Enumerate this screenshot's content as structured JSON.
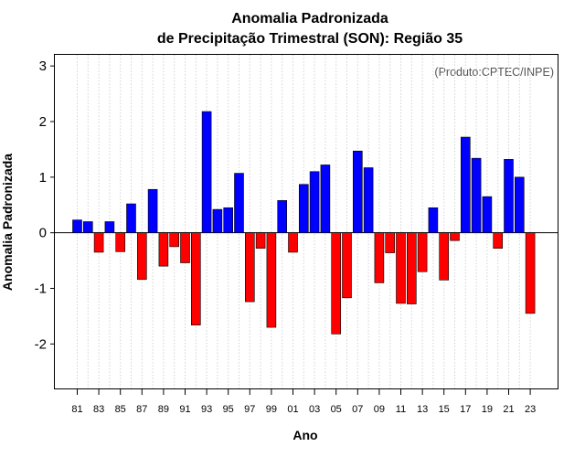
{
  "chart_data": {
    "type": "bar",
    "title": [
      "Anomalia Padronizada",
      "de Precipitação Trimestral (SON): Região 35"
    ],
    "xlabel": "Ano",
    "ylabel": "Anomalia Padronizada",
    "credit": "(Produto:CPTEC/INPE)",
    "ylim": [
      -2.8,
      3.2
    ],
    "yticks": [
      -2,
      -1,
      0,
      1,
      2,
      3
    ],
    "xtick_labels": [
      "81",
      "83",
      "85",
      "87",
      "89",
      "91",
      "93",
      "95",
      "97",
      "99",
      "01",
      "03",
      "05",
      "07",
      "09",
      "11",
      "13",
      "15",
      "17",
      "19",
      "21",
      "23"
    ],
    "categories": [
      "1981",
      "1982",
      "1983",
      "1984",
      "1985",
      "1986",
      "1987",
      "1988",
      "1989",
      "1990",
      "1991",
      "1992",
      "1993",
      "1994",
      "1995",
      "1996",
      "1997",
      "1998",
      "1999",
      "2000",
      "2001",
      "2002",
      "2003",
      "2004",
      "2005",
      "2006",
      "2007",
      "2008",
      "2009",
      "2010",
      "2011",
      "2012",
      "2013",
      "2014",
      "2015",
      "2016",
      "2017",
      "2018",
      "2019",
      "2020",
      "2021",
      "2022",
      "2023"
    ],
    "values": [
      0.23,
      0.2,
      -0.35,
      0.2,
      -0.34,
      0.52,
      -0.84,
      0.78,
      -0.6,
      -0.25,
      -0.54,
      -1.66,
      2.18,
      0.42,
      0.45,
      1.07,
      -1.24,
      -0.28,
      -1.7,
      0.58,
      -0.35,
      0.87,
      1.1,
      1.22,
      -1.82,
      -1.17,
      1.47,
      1.17,
      -0.9,
      -0.36,
      -1.27,
      -1.28,
      -0.7,
      0.45,
      -0.85,
      -0.14,
      1.72,
      1.34,
      0.65,
      -0.28,
      1.32,
      1.0,
      -1.45
    ],
    "colors": {
      "positive": "#0000ff",
      "negative": "#ff0000",
      "grid": "#d3d3d3"
    },
    "grid": true
  }
}
